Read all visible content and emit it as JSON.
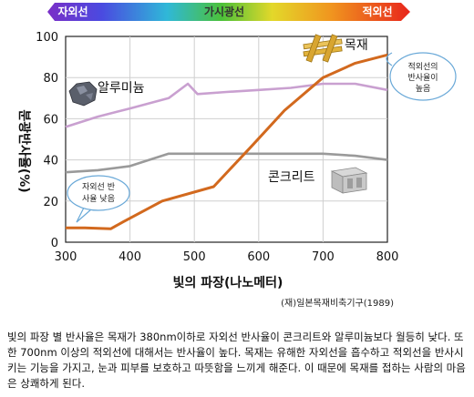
{
  "spectrum_bar": {
    "uv_label": "자외선",
    "visible_label": "가시광선",
    "ir_label": "적외선"
  },
  "chart_data": {
    "type": "line",
    "xlabel": "빛의 파장(나노메터)",
    "ylabel": "분광반사율(%)",
    "xlim": [
      300,
      800
    ],
    "ylim": [
      0,
      100
    ],
    "x_ticks": [
      300,
      400,
      500,
      600,
      700,
      800
    ],
    "y_ticks": [
      0,
      20,
      40,
      60,
      80,
      100
    ],
    "grid": true,
    "series": [
      {
        "name": "목재",
        "color": "#d2691e",
        "x": [
          300,
          330,
          370,
          390,
          450,
          530,
          590,
          640,
          700,
          750,
          800
        ],
        "y": [
          7,
          7,
          6.5,
          10,
          20,
          27,
          47,
          64,
          80,
          87,
          91
        ]
      },
      {
        "name": "알루미늄",
        "color": "#c9a0d0",
        "x": [
          300,
          350,
          400,
          460,
          490,
          505,
          550,
          600,
          650,
          700,
          750,
          800
        ],
        "y": [
          56,
          61,
          65,
          70,
          77,
          72,
          73,
          74,
          75,
          77,
          77,
          74
        ]
      },
      {
        "name": "콘크리트",
        "color": "#9a9a9a",
        "x": [
          300,
          350,
          400,
          460,
          490,
          550,
          600,
          650,
          700,
          750,
          800
        ],
        "y": [
          34,
          35,
          37,
          43,
          43,
          43,
          43,
          43,
          43,
          42,
          40
        ]
      }
    ],
    "annotations": [
      {
        "text_lines": [
          "적외선의",
          "반사율이",
          "높음"
        ],
        "target": "목재 at 800nm"
      },
      {
        "text_lines": [
          "자외선 반",
          "사율 낮음"
        ],
        "target": "목재 at 330nm"
      }
    ]
  },
  "source_note": "(재)일본목재비축기구(1989)",
  "caption": "빛의 파장 별 반사율은 목재가 380nm이하로 자외선 반사율이 콘크리트와 알루미늄보다 월등히 낮다. 또한 700nm 이상의 적외선에 대해서는 반사율이 높다. 목재는 유해한 자외선을 흡수하고 적외선을 반사시키는 기능을 가지고, 눈과 피부를 보호하고 따뜻함을 느끼게 해준다. 이 때문에 목재를 접하는 사람의 마음은 상쾌하게 된다.",
  "colors": {
    "wood_line": "#d2691e",
    "aluminum_line": "#c9a0d0",
    "concrete_line": "#9a9a9a",
    "callout_border": "#6aa9d8"
  },
  "icons": {
    "wood": "wood-planks-icon",
    "aluminum": "aluminum-ore-icon",
    "concrete": "concrete-block-icon"
  }
}
